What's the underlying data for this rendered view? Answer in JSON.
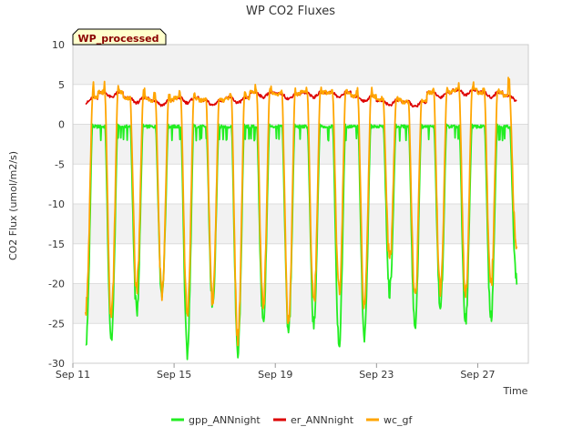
{
  "chart_data": {
    "type": "line",
    "title": "WP CO2 Fluxes",
    "badge": "WP_processed",
    "xlabel": "Time",
    "ylabel": "CO2 Flux (umol/m2/s)",
    "xlim": [
      "2023-09-11",
      "2023-09-29"
    ],
    "ylim": [
      -30,
      10
    ],
    "xticks": [
      {
        "date": "2023-09-11",
        "label": "Sep 11"
      },
      {
        "date": "2023-09-15",
        "label": "Sep 15"
      },
      {
        "date": "2023-09-19",
        "label": "Sep 19"
      },
      {
        "date": "2023-09-23",
        "label": "Sep 23"
      },
      {
        "date": "2023-09-27",
        "label": "Sep 27"
      }
    ],
    "yticks": [
      {
        "value": 10,
        "label": "10"
      },
      {
        "value": 5,
        "label": "5"
      },
      {
        "value": 0,
        "label": "0"
      },
      {
        "value": -5,
        "label": "-5"
      },
      {
        "value": -10,
        "label": "-10"
      },
      {
        "value": -15,
        "label": "-15"
      },
      {
        "value": -20,
        "label": "-20"
      },
      {
        "value": -25,
        "label": "-25"
      },
      {
        "value": -30,
        "label": "-30"
      }
    ],
    "grid": true,
    "legend_position": "bottom",
    "series": [
      {
        "name": "gpp_ANNnight",
        "color": "#22ee22",
        "start": "2023-09-11",
        "end": "2023-09-28",
        "night": -0.3,
        "daily_min": [
          -27.5,
          -27.0,
          -23.5,
          -22.0,
          -28.5,
          -22.5,
          -28.5,
          -25.0,
          -26.0,
          -25.0,
          -27.5,
          -26.5,
          -21.0,
          -25.5,
          -23.0,
          -24.5,
          -24.5,
          -19.5
        ]
      },
      {
        "name": "er_ANNnight",
        "color": "#dd0000",
        "start": "2023-09-11",
        "end": "2023-09-28",
        "night_levels": [
          3.3,
          4.0,
          3.3,
          3.0,
          3.3,
          3.0,
          3.3,
          4.0,
          3.8,
          4.0,
          4.0,
          3.5,
          3.0,
          2.8,
          4.0,
          4.3,
          4.0,
          3.6
        ]
      },
      {
        "name": "wc_gf",
        "color": "#ffa500",
        "start": "2023-09-11",
        "end": "2023-09-28",
        "daily_min": [
          -23.0,
          -24.0,
          -20.5,
          -21.5,
          -24.0,
          -22.0,
          -27.0,
          -23.0,
          -25.0,
          -22.5,
          -21.0,
          -23.0,
          -17.0,
          -22.0,
          -21.0,
          -21.0,
          -20.5,
          -15.5
        ],
        "daily_peak": [
          5.8,
          5.3,
          4.8,
          4.5,
          4.5,
          3.5,
          5.0,
          5.2,
          4.5,
          4.5,
          4.5,
          5.0,
          3.5,
          3.0,
          4.5,
          5.2,
          4.5,
          5.8
        ]
      }
    ]
  }
}
